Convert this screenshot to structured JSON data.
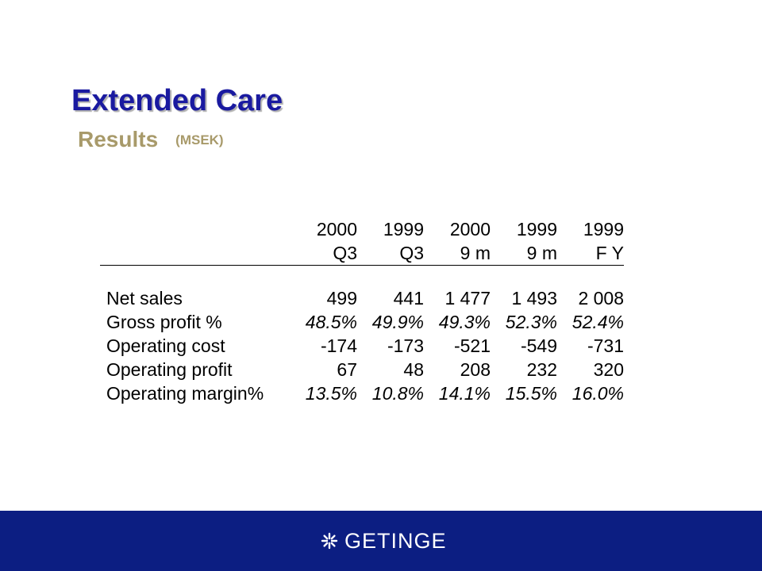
{
  "slide": {
    "title": "Extended Care",
    "subtitle": "Results",
    "unit": "(MSEK)"
  },
  "table": {
    "header_years": [
      "2000",
      "1999",
      "2000",
      "1999",
      "1999"
    ],
    "header_periods": [
      "Q3",
      "Q3",
      "9 m",
      "9 m",
      "F Y"
    ],
    "rows": [
      {
        "label": "Net sales",
        "values": [
          "499",
          "441",
          "1 477",
          "1 493",
          "2 008"
        ],
        "italic": false
      },
      {
        "label": "Gross profit %",
        "values": [
          "48.5%",
          "49.9%",
          "49.3%",
          "52.3%",
          "52.4%"
        ],
        "italic": true
      },
      {
        "label": "Operating cost",
        "values": [
          "-174",
          "-173",
          "-521",
          "-549",
          "-731"
        ],
        "italic": false
      },
      {
        "label": "Operating profit",
        "values": [
          "67",
          "48",
          "208",
          "232",
          "320"
        ],
        "italic": false
      },
      {
        "label": "Operating margin%",
        "values": [
          "13.5%",
          "10.8%",
          "14.1%",
          "15.5%",
          "16.0%"
        ],
        "italic": true
      }
    ]
  },
  "footer": {
    "logo_text": "GETINGE",
    "logo_icon": "getinge-star-icon",
    "background": "#0c1e82"
  },
  "colors": {
    "title": "#1a1aa0",
    "subtitle": "#a89a6a"
  }
}
